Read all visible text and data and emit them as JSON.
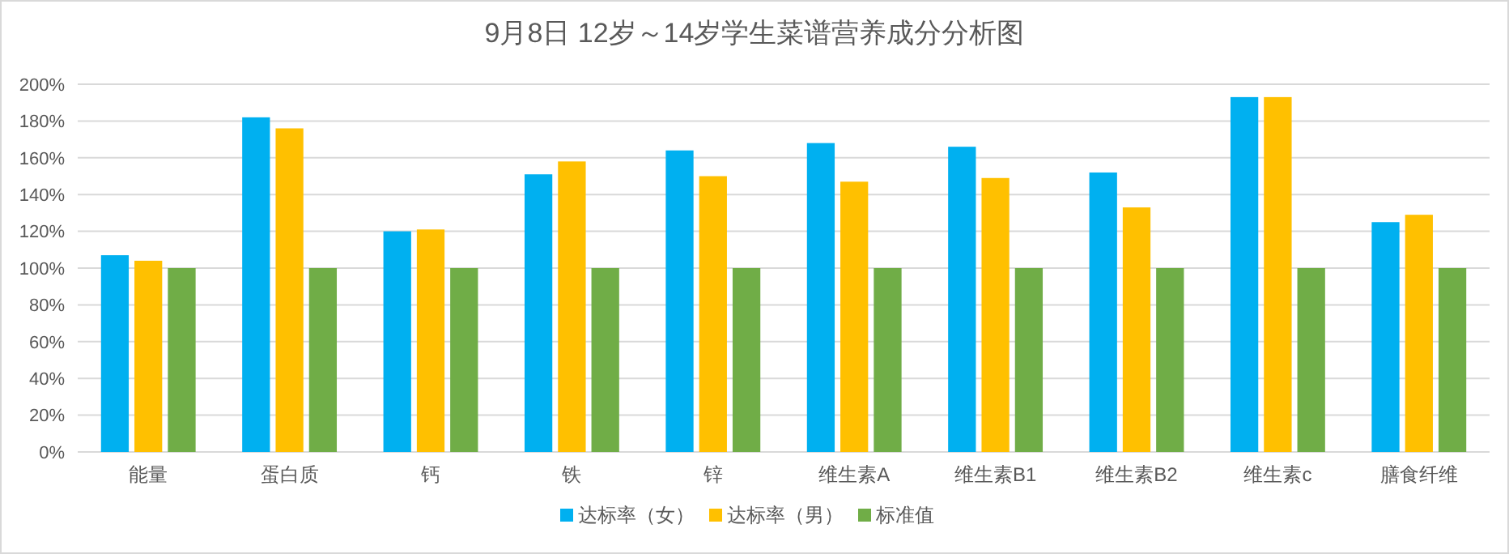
{
  "chart_data": {
    "type": "bar",
    "title": "9月8日 12岁～14岁学生菜谱营养成分分析图",
    "categories": [
      "能量",
      "蛋白质",
      "钙",
      "铁",
      "锌",
      "维生素A",
      "维生素B1",
      "维生素B2",
      "维生素c",
      "膳食纤维"
    ],
    "series": [
      {
        "name": "达标率（女）",
        "color": "#00b0f0",
        "values": [
          107,
          182,
          120,
          151,
          164,
          168,
          166,
          152,
          193,
          125
        ]
      },
      {
        "name": "达标率（男）",
        "color": "#ffc000",
        "values": [
          104,
          176,
          121,
          158,
          150,
          147,
          149,
          133,
          193,
          129
        ]
      },
      {
        "name": "标准值",
        "color": "#70ad47",
        "values": [
          100,
          100,
          100,
          100,
          100,
          100,
          100,
          100,
          100,
          100
        ]
      }
    ],
    "ylim": [
      0,
      200
    ],
    "yticks": [
      {
        "value": 0,
        "label": "0%"
      },
      {
        "value": 20,
        "label": "20%"
      },
      {
        "value": 40,
        "label": "40%"
      },
      {
        "value": 60,
        "label": "60%"
      },
      {
        "value": 80,
        "label": "80%"
      },
      {
        "value": 100,
        "label": "100%"
      },
      {
        "value": 120,
        "label": "120%"
      },
      {
        "value": 140,
        "label": "140%"
      },
      {
        "value": 160,
        "label": "160%"
      },
      {
        "value": 180,
        "label": "180%"
      },
      {
        "value": 200,
        "label": "200%"
      }
    ],
    "grid": "y",
    "legend": "bottom"
  }
}
